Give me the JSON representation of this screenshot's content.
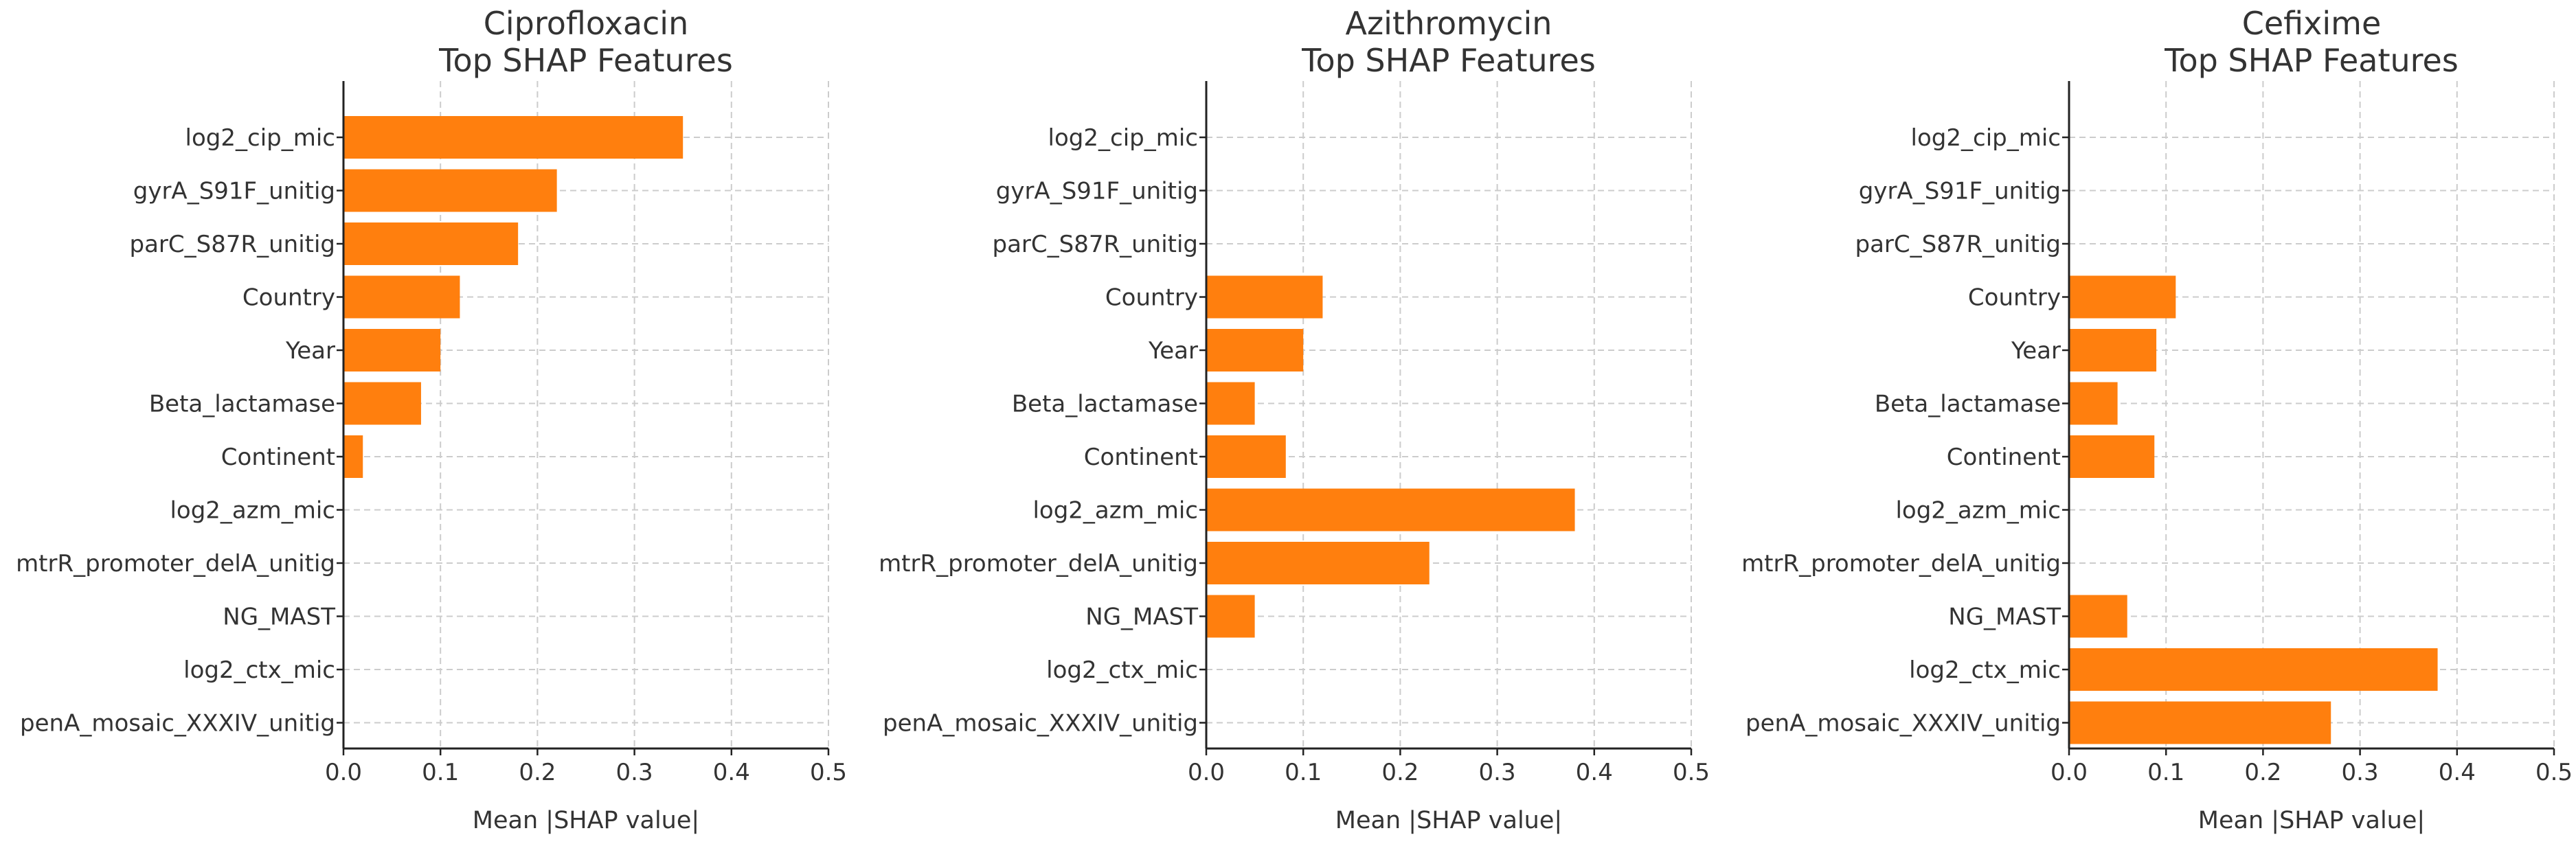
{
  "colors": {
    "bar": "#ff7f0e",
    "text": "#333333",
    "grid": "#cccccc",
    "axis": "#222222"
  },
  "chart_data": [
    {
      "type": "bar",
      "orientation": "horizontal",
      "title": [
        "Ciprofloxacin",
        "Top SHAP Features"
      ],
      "xlabel": "Mean |SHAP value|",
      "xlim": [
        0,
        0.5
      ],
      "xticks": [
        "0.0",
        "0.1",
        "0.2",
        "0.3",
        "0.4",
        "0.5"
      ],
      "grid": true,
      "categories": [
        "log2_cip_mic",
        "gyrA_S91F_unitig",
        "parC_S87R_unitig",
        "Country",
        "Year",
        "Beta_lactamase",
        "Continent",
        "log2_azm_mic",
        "mtrR_promoter_delA_unitig",
        "NG_MAST",
        "log2_ctx_mic",
        "penA_mosaic_XXXIV_unitig"
      ],
      "values": [
        0.35,
        0.22,
        0.18,
        0.12,
        0.1,
        0.08,
        0.02,
        0,
        0,
        0,
        0,
        0
      ]
    },
    {
      "type": "bar",
      "orientation": "horizontal",
      "title": [
        "Azithromycin",
        "Top SHAP Features"
      ],
      "xlabel": "Mean |SHAP value|",
      "xlim": [
        0,
        0.5
      ],
      "xticks": [
        "0.0",
        "0.1",
        "0.2",
        "0.3",
        "0.4",
        "0.5"
      ],
      "grid": true,
      "categories": [
        "log2_cip_mic",
        "gyrA_S91F_unitig",
        "parC_S87R_unitig",
        "Country",
        "Year",
        "Beta_lactamase",
        "Continent",
        "log2_azm_mic",
        "mtrR_promoter_delA_unitig",
        "NG_MAST",
        "log2_ctx_mic",
        "penA_mosaic_XXXIV_unitig"
      ],
      "values": [
        0,
        0,
        0,
        0.12,
        0.1,
        0.05,
        0.082,
        0.38,
        0.23,
        0.05,
        0,
        0
      ]
    },
    {
      "type": "bar",
      "orientation": "horizontal",
      "title": [
        "Cefixime",
        "Top SHAP Features"
      ],
      "xlabel": "Mean |SHAP value|",
      "xlim": [
        0,
        0.5
      ],
      "xticks": [
        "0.0",
        "0.1",
        "0.2",
        "0.3",
        "0.4",
        "0.5"
      ],
      "grid": true,
      "categories": [
        "log2_cip_mic",
        "gyrA_S91F_unitig",
        "parC_S87R_unitig",
        "Country",
        "Year",
        "Beta_lactamase",
        "Continent",
        "log2_azm_mic",
        "mtrR_promoter_delA_unitig",
        "NG_MAST",
        "log2_ctx_mic",
        "penA_mosaic_XXXIV_unitig"
      ],
      "values": [
        0,
        0,
        0,
        0.11,
        0.09,
        0.05,
        0.088,
        0,
        0,
        0.06,
        0.38,
        0.27
      ]
    }
  ]
}
